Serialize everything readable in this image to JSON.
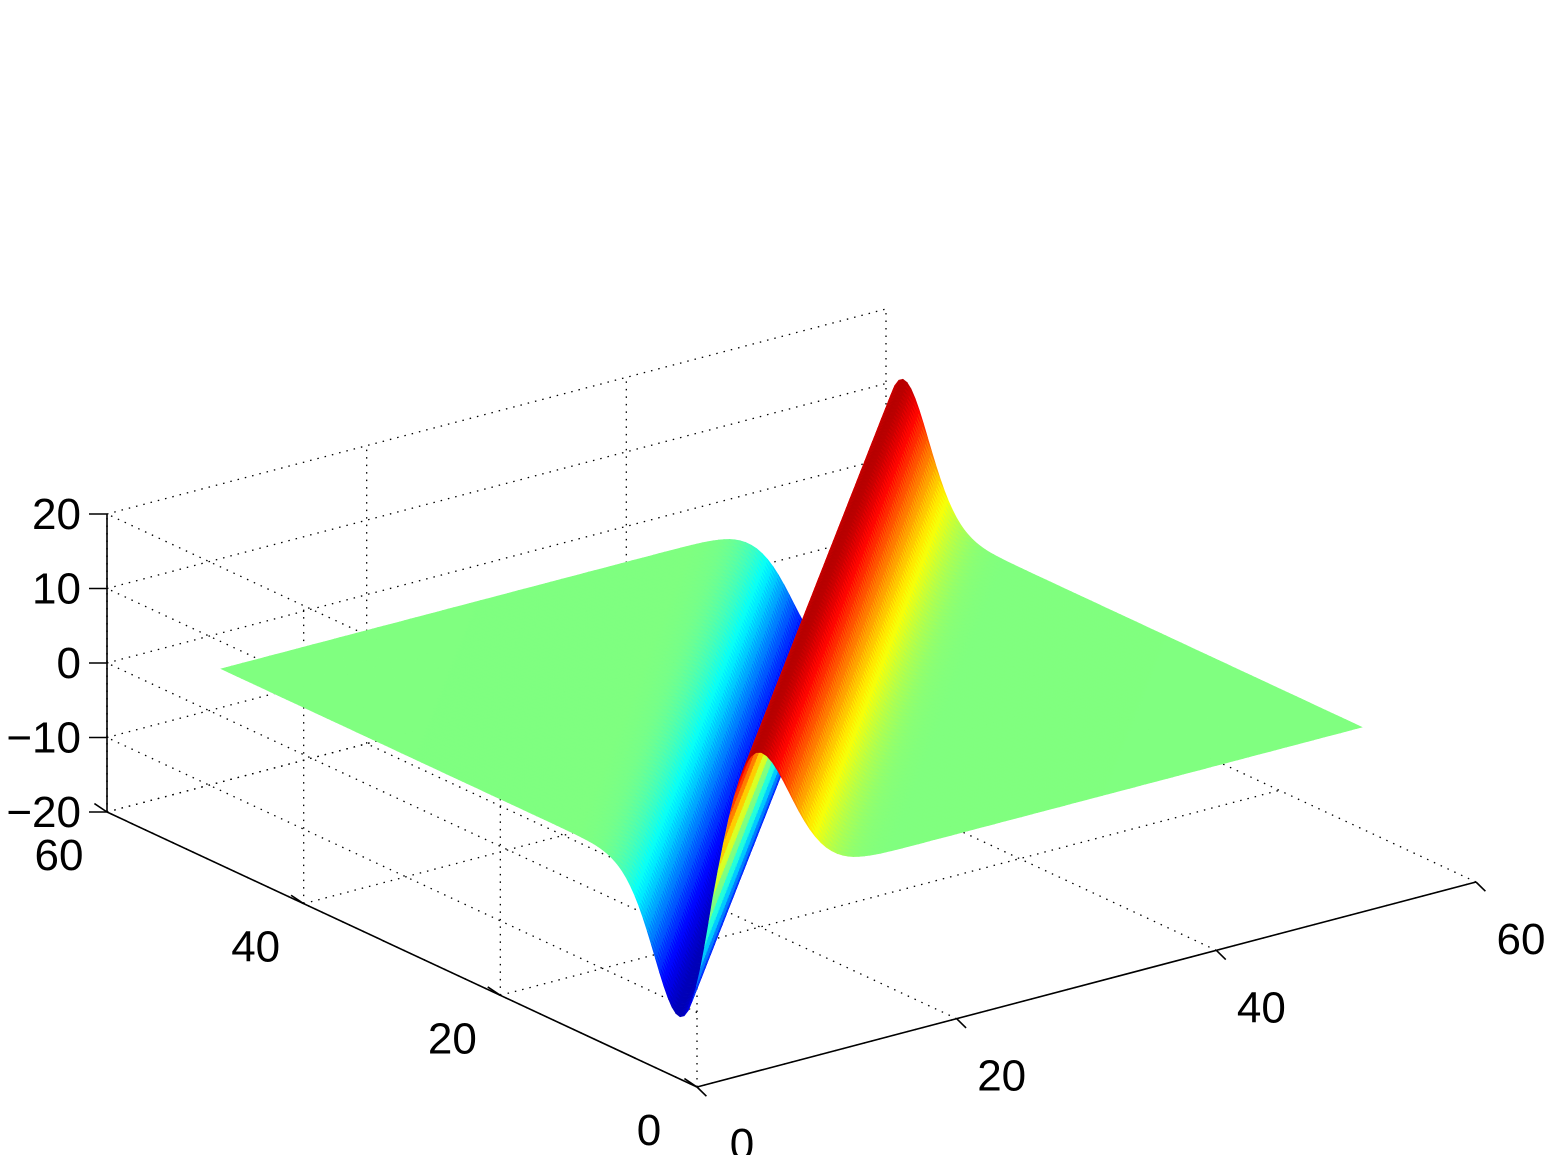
{
  "chart_data": {
    "type": "surface",
    "title": "",
    "xlabel": "",
    "ylabel": "",
    "zlabel": "",
    "grid": true,
    "colormap": "jet",
    "x_range": [
      0,
      60
    ],
    "y_range": [
      0,
      60
    ],
    "z_range": [
      -20,
      20
    ],
    "x_ticks": [
      0,
      20,
      40,
      60
    ],
    "y_ticks": [
      0,
      20,
      40,
      60
    ],
    "z_ticks": [
      -20,
      -10,
      0,
      10,
      20
    ],
    "x_tick_labels": [
      "0",
      "20",
      "40",
      "60"
    ],
    "y_tick_labels": [
      "0",
      "20",
      "40",
      "60"
    ],
    "z_tick_labels": [
      "−20",
      "−10",
      "0",
      "10",
      "20"
    ],
    "surface": {
      "grid_x": [
        5,
        55
      ],
      "grid_y": [
        5,
        55
      ],
      "description_of_function": "z = 18 * (u / 3.4) * exp(-(u^2 - 3.4^2) / (2 * 3.4^2)) where u = x - y; wave ridge along the diagonal x = y",
      "peak": {
        "z": 18
      },
      "trough": {
        "z": -18
      },
      "flat_level": 0
    }
  }
}
